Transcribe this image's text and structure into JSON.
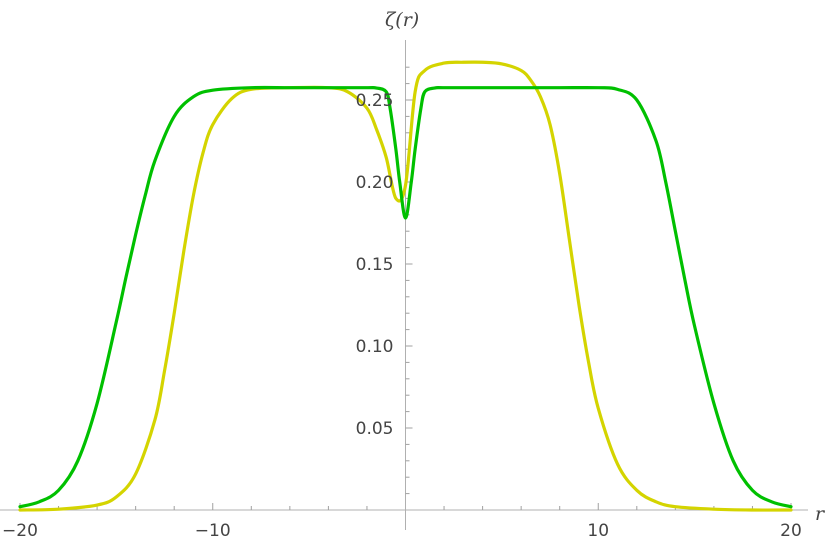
{
  "chart_data": {
    "type": "line",
    "title": "",
    "xlabel": "r",
    "ylabel": "ζ(r)",
    "xlim": [
      -20,
      20
    ],
    "ylim": [
      0,
      0.27
    ],
    "grid": false,
    "legend": "none",
    "x_ticks": [
      -20,
      -10,
      10,
      20
    ],
    "x_tick_labels": [
      "−20",
      "−10",
      "10",
      "20"
    ],
    "y_ticks": [
      0.05,
      0.1,
      0.15,
      0.2,
      0.25
    ],
    "y_tick_labels": [
      "0.05",
      "0.10",
      "0.15",
      "0.20",
      "0.25"
    ],
    "series": [
      {
        "color": "#00c000",
        "x": [
          -20,
          -19,
          -18,
          -17,
          -16,
          -15,
          -14.5,
          -14,
          -13.5,
          -13,
          -12,
          -11,
          -10,
          -8,
          -6,
          -4,
          -2,
          -1.5,
          -1,
          -0.8,
          -0.5,
          -0.3,
          0,
          0.3,
          0.5,
          0.8,
          1,
          1.5,
          2,
          4,
          6,
          8,
          10,
          11,
          12,
          13,
          13.5,
          14,
          14.5,
          15,
          16,
          17,
          18,
          19,
          20
        ],
        "y": [
          0.002,
          0.005,
          0.012,
          0.03,
          0.065,
          0.115,
          0.142,
          0.168,
          0.192,
          0.213,
          0.24,
          0.252,
          0.256,
          0.2575,
          0.2575,
          0.2575,
          0.2575,
          0.2573,
          0.255,
          0.245,
          0.22,
          0.2,
          0.178,
          0.2,
          0.22,
          0.245,
          0.255,
          0.2573,
          0.2575,
          0.2575,
          0.2575,
          0.2575,
          0.2575,
          0.2565,
          0.25,
          0.225,
          0.2,
          0.17,
          0.14,
          0.112,
          0.065,
          0.03,
          0.012,
          0.005,
          0.002
        ]
      },
      {
        "color": "#d4d400",
        "x": [
          -20,
          -18,
          -16,
          -15,
          -14,
          -13,
          -12.5,
          -12,
          -11.5,
          -11,
          -10.5,
          -10,
          -9,
          -8,
          -6,
          -4,
          -3,
          -2,
          -1.5,
          -1,
          -0.5,
          0,
          0.5,
          1,
          2,
          3,
          4,
          5,
          6,
          6.5,
          7,
          7.5,
          8,
          8.5,
          9,
          9.5,
          10,
          11,
          12,
          13,
          14,
          16,
          18,
          20
        ],
        "y": [
          0.0,
          0.0005,
          0.003,
          0.008,
          0.022,
          0.055,
          0.085,
          0.12,
          0.158,
          0.192,
          0.218,
          0.235,
          0.251,
          0.2565,
          0.2575,
          0.2575,
          0.255,
          0.245,
          0.232,
          0.215,
          0.19,
          0.198,
          0.255,
          0.268,
          0.2725,
          0.273,
          0.273,
          0.272,
          0.268,
          0.262,
          0.252,
          0.235,
          0.205,
          0.165,
          0.125,
          0.09,
          0.062,
          0.028,
          0.012,
          0.005,
          0.002,
          0.0005,
          0.0,
          0.0
        ]
      }
    ]
  }
}
